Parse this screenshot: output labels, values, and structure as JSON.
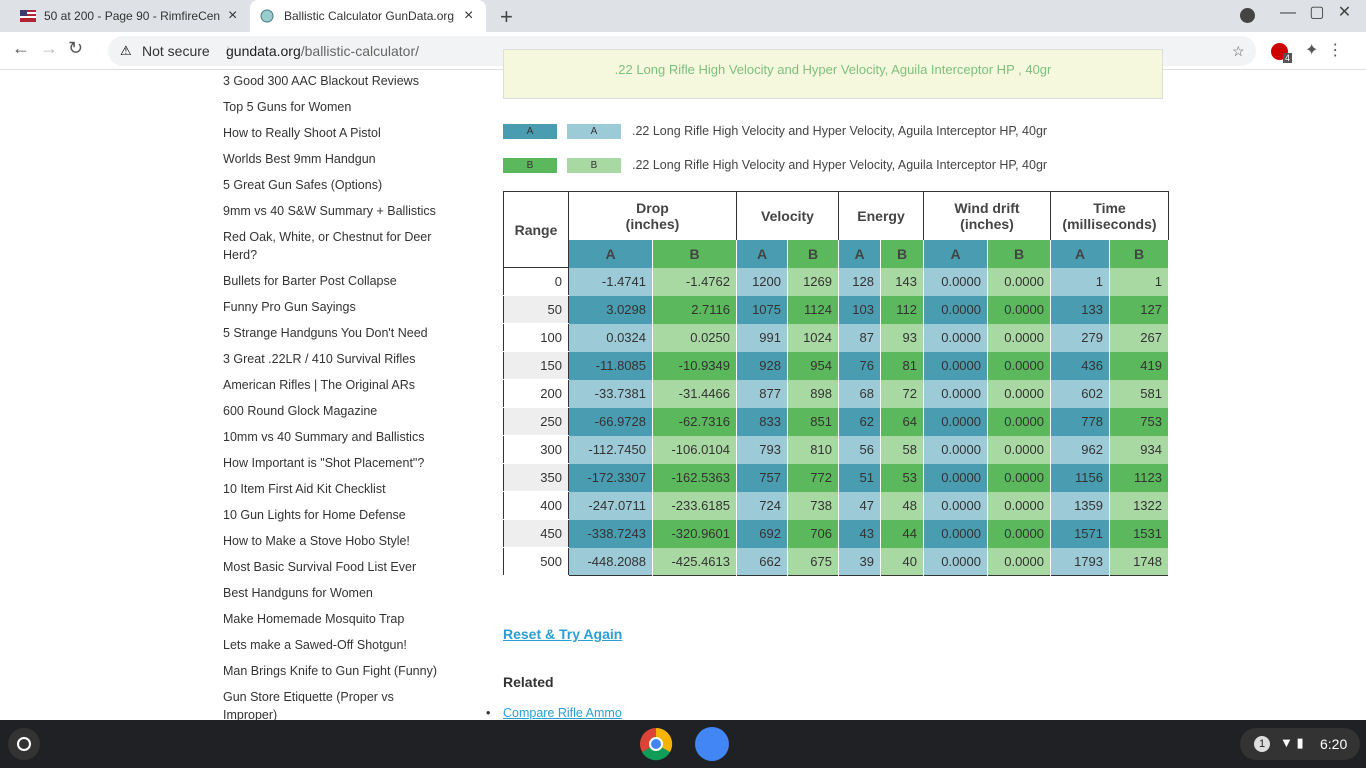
{
  "browser": {
    "tabs": [
      "50 at 200 - Page 90 - RimfireCen",
      "Ballistic Calculator GunData.org"
    ],
    "security": "Not secure",
    "url_host": "gundata.org",
    "url_path": "/ballistic-calculator/",
    "extension_badge": "4"
  },
  "sidebar": {
    "links": [
      "3 Good 300 AAC Blackout Reviews",
      "Top 5 Guns for Women",
      "How to Really Shoot A Pistol",
      "Worlds Best 9mm Handgun",
      "5 Great Gun Safes (Options)",
      "9mm vs 40 S&W Summary + Ballistics",
      "Red Oak, White, or Chestnut for Deer Herd?",
      "Bullets for Barter Post Collapse",
      "Funny Pro Gun Sayings",
      "5 Strange Handguns You Don't Need",
      "3 Great .22LR / 410 Survival Rifles",
      "American Rifles | The Original ARs",
      "600 Round Glock Magazine",
      "10mm vs 40 Summary and Ballistics",
      "How Important is \"Shot Placement\"?",
      "10 Item First Aid Kit Checklist",
      "10 Gun Lights for Home Defense",
      "How to Make a Stove Hobo Style!",
      "Most Basic Survival Food List Ever",
      "Best Handguns for Women",
      "Make Homemade Mosquito Trap",
      "Lets make a Sawed-Off Shotgun!",
      "Man Brings Knife to Gun Fight (Funny)",
      "Gun Store Etiquette (Proper vs Improper)"
    ]
  },
  "banner": ".22 Long Rifle High Velocity and Hyper Velocity, Aguila Interceptor HP , 40gr",
  "legend": [
    {
      "dark": "A",
      "light": "A",
      "label": ".22 Long Rifle High Velocity and Hyper Velocity, Aguila Interceptor HP, 40gr"
    },
    {
      "dark": "B",
      "light": "B",
      "label": ".22 Long Rifle High Velocity and Hyper Velocity, Aguila Interceptor HP, 40gr"
    }
  ],
  "table": {
    "headers": [
      {
        "title": "Range"
      },
      {
        "title": "Drop",
        "unit": "(inches)"
      },
      {
        "title": "Velocity"
      },
      {
        "title": "Energy"
      },
      {
        "title": "Wind drift",
        "unit": "(inches)"
      },
      {
        "title": "Time",
        "unit": "(milliseconds)"
      }
    ],
    "subheaders": [
      "A",
      "B",
      "A",
      "B",
      "A",
      "B",
      "A",
      "B",
      "A",
      "B"
    ],
    "rows": [
      [
        "0",
        "-1.4741",
        "-1.4762",
        "1200",
        "1269",
        "128",
        "143",
        "0.0000",
        "0.0000",
        "1",
        "1"
      ],
      [
        "50",
        "3.0298",
        "2.7116",
        "1075",
        "1124",
        "103",
        "112",
        "0.0000",
        "0.0000",
        "133",
        "127"
      ],
      [
        "100",
        "0.0324",
        "0.0250",
        "991",
        "1024",
        "87",
        "93",
        "0.0000",
        "0.0000",
        "279",
        "267"
      ],
      [
        "150",
        "-11.8085",
        "-10.9349",
        "928",
        "954",
        "76",
        "81",
        "0.0000",
        "0.0000",
        "436",
        "419"
      ],
      [
        "200",
        "-33.7381",
        "-31.4466",
        "877",
        "898",
        "68",
        "72",
        "0.0000",
        "0.0000",
        "602",
        "581"
      ],
      [
        "250",
        "-66.9728",
        "-62.7316",
        "833",
        "851",
        "62",
        "64",
        "0.0000",
        "0.0000",
        "778",
        "753"
      ],
      [
        "300",
        "-112.7450",
        "-106.0104",
        "793",
        "810",
        "56",
        "58",
        "0.0000",
        "0.0000",
        "962",
        "934"
      ],
      [
        "350",
        "-172.3307",
        "-162.5363",
        "757",
        "772",
        "51",
        "53",
        "0.0000",
        "0.0000",
        "1156",
        "1123"
      ],
      [
        "400",
        "-247.0711",
        "-233.6185",
        "724",
        "738",
        "47",
        "48",
        "0.0000",
        "0.0000",
        "1359",
        "1322"
      ],
      [
        "450",
        "-338.7243",
        "-320.9601",
        "692",
        "706",
        "43",
        "44",
        "0.0000",
        "0.0000",
        "1571",
        "1531"
      ],
      [
        "500",
        "-448.2088",
        "-425.4613",
        "662",
        "675",
        "39",
        "40",
        "0.0000",
        "0.0000",
        "1793",
        "1748"
      ]
    ]
  },
  "reset": "Reset & Try Again",
  "related": {
    "title": "Related",
    "links": [
      "Compare Rifle Ammo"
    ]
  },
  "taskbar": {
    "notifications": "1",
    "clock": "6:20"
  }
}
